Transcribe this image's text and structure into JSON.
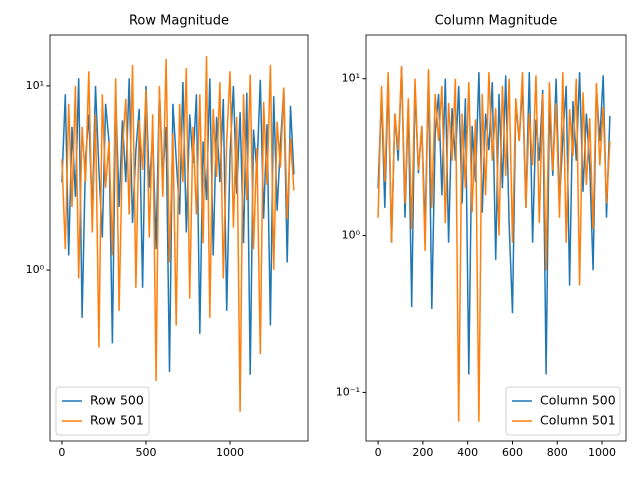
{
  "chart_data": [
    {
      "type": "line",
      "title": "Row Magnitude",
      "yscale": "log",
      "legend": "lower left",
      "xlim": [
        -71,
        1464
      ],
      "xticks": [
        0,
        500,
        1000
      ],
      "ylim": [
        0.118,
        18.9
      ],
      "yticks": [
        {
          "value": 1,
          "label": "10⁰"
        },
        {
          "value": 10,
          "label": "10¹"
        }
      ],
      "x": [
        0,
        20,
        40,
        60,
        80,
        100,
        120,
        140,
        160,
        180,
        200,
        220,
        240,
        260,
        280,
        300,
        320,
        340,
        360,
        380,
        400,
        420,
        440,
        460,
        480,
        500,
        520,
        540,
        560,
        580,
        600,
        620,
        640,
        660,
        680,
        700,
        720,
        740,
        760,
        780,
        800,
        820,
        840,
        860,
        880,
        900,
        920,
        940,
        960,
        980,
        1000,
        1020,
        1040,
        1060,
        1080,
        1100,
        1120,
        1140,
        1160,
        1180,
        1200,
        1220,
        1240,
        1260,
        1280,
        1300,
        1320,
        1340,
        1360,
        1380
      ],
      "series": [
        {
          "name": "Row 500",
          "color": "#1f77b4",
          "values": [
            3,
            9,
            1.2,
            6,
            2.5,
            11,
            0.55,
            4,
            7,
            2,
            10,
            3.5,
            1.5,
            8,
            5,
            0.4,
            9,
            2.2,
            6.5,
            3,
            11,
            1.8,
            4.5,
            7.5,
            0.8,
            10,
            2.8,
            5.5,
            1.3,
            9.5,
            3.2,
            6,
            0.28,
            8,
            4,
            2,
            10.5,
            1.6,
            7,
            3.8,
            9,
            0.45,
            5,
            2.4,
            11,
            1.2,
            6.8,
            3,
            8.5,
            0.6,
            4.2,
            10,
            2.6,
            7.2,
            1.4,
            9.2,
            0.27,
            5.8,
            3.4,
            10.8,
            1.9,
            6.2,
            0.5,
            8.8,
            2.1,
            4.8,
            9.6,
            1.1,
            7.8,
            3.3
          ]
        },
        {
          "name": "Row 501",
          "color": "#ff7f0e",
          "values": [
            4,
            1.3,
            8,
            2.2,
            10,
            0.9,
            6,
            3,
            12,
            1.6,
            7,
            0.38,
            9,
            2.8,
            5,
            1.2,
            11,
            0.6,
            4.5,
            8.5,
            2,
            13,
            0.8,
            6.5,
            3.5,
            9.5,
            1.5,
            7,
            0.25,
            10,
            2.5,
            14,
            1.1,
            5.5,
            0.5,
            8,
            3,
            12.5,
            0.7,
            6,
            2,
            9,
            1.4,
            14.5,
            0.55,
            7.5,
            3.2,
            10.5,
            0.9,
            5,
            12,
            1.7,
            6.8,
            0.17,
            9,
            2.4,
            11.5,
            1.3,
            4.6,
            0.35,
            8.2,
            2.9,
            13,
            1,
            6.4,
            3.6,
            9.8,
            1.9,
            5.2,
            2.7
          ]
        }
      ]
    },
    {
      "type": "line",
      "title": "Column Magnitude",
      "yscale": "log",
      "legend": "lower right",
      "xlim": [
        -54,
        1107
      ],
      "xticks": [
        0,
        200,
        400,
        600,
        800,
        1000
      ],
      "ylim": [
        0.049,
        19
      ],
      "yticks": [
        {
          "value": 0.1,
          "label": "10⁻¹"
        },
        {
          "value": 1,
          "label": "10⁰"
        },
        {
          "value": 10,
          "label": "10¹"
        }
      ],
      "x": [
        0,
        15,
        30,
        45,
        60,
        75,
        90,
        105,
        120,
        135,
        150,
        165,
        180,
        195,
        210,
        225,
        240,
        255,
        270,
        285,
        300,
        315,
        330,
        345,
        360,
        375,
        390,
        405,
        420,
        435,
        450,
        465,
        480,
        495,
        510,
        525,
        540,
        555,
        570,
        585,
        600,
        615,
        630,
        645,
        660,
        675,
        690,
        705,
        720,
        735,
        750,
        765,
        780,
        795,
        810,
        825,
        840,
        855,
        870,
        885,
        900,
        915,
        930,
        945,
        960,
        975,
        990,
        1005,
        1020,
        1035
      ],
      "series": [
        {
          "name": "Column 500",
          "color": "#1f77b4",
          "values": [
            2,
            8,
            1.5,
            10,
            0.9,
            6,
            3,
            12,
            1.3,
            7,
            0.35,
            9,
            2.5,
            5,
            1.1,
            11,
            0.34,
            4.5,
            8,
            1.8,
            10,
            0.9,
            6.5,
            3,
            9,
            1.6,
            7.5,
            0.13,
            5,
            2.2,
            11,
            1.4,
            6,
            3.5,
            9.5,
            0.7,
            8,
            2,
            10.5,
            1.2,
            0.32,
            7,
            4,
            9,
            1.5,
            11,
            0.9,
            5.5,
            3,
            8.5,
            0.13,
            6.8,
            2.4,
            10,
            1.6,
            4.2,
            9,
            0.48,
            7.2,
            3,
            11,
            1.9,
            6,
            2.8,
            0.6,
            8.8,
            4,
            10.5,
            1.3,
            5.8
          ]
        },
        {
          "name": "Column 501",
          "color": "#ff7f0e",
          "values": [
            1.3,
            9,
            2.2,
            11,
            0.9,
            6,
            3.5,
            12,
            1.6,
            7.5,
            1.1,
            10,
            2.6,
            5,
            0.8,
            11.5,
            1.5,
            8,
            4,
            9,
            1.2,
            7,
            3,
            10,
            0.065,
            6,
            2,
            9.5,
            1.4,
            5.5,
            0.065,
            8,
            1.8,
            11,
            3,
            6.5,
            1,
            9,
            2.4,
            10,
            0.9,
            7.5,
            4,
            11,
            1.5,
            6,
            2.8,
            10.5,
            1.2,
            8,
            0.6,
            9.5,
            2.6,
            7,
            1.3,
            11,
            0.9,
            6.4,
            3.2,
            10,
            0.48,
            8.2,
            2.1,
            5.6,
            1.1,
            9.4,
            2.8,
            6.6,
            1.6,
            4
          ]
        }
      ]
    }
  ]
}
